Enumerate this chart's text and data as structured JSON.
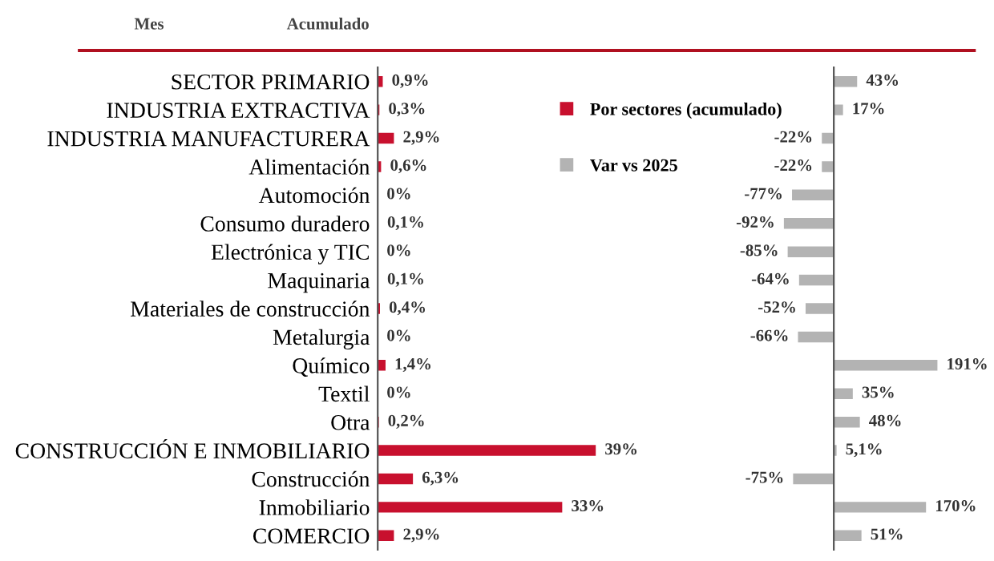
{
  "chart_data": [
    {
      "type": "bar",
      "orientation": "horizontal",
      "annotations": [
        "Mes",
        "Acumulado"
      ],
      "legend": "top right",
      "data_labels": true,
      "categories": [
        "SECTOR PRIMARIO",
        "INDUSTRIA EXTRACTIVA",
        "INDUSTRIA MANUFACTURERA",
        "Alimentación",
        "Automoción",
        "Consumo duradero",
        "Electrónica y TIC",
        "Maquinaria",
        "Materiales de construcción",
        "Metalurgia",
        "Químico",
        "Textil",
        "Otra",
        "CONSTRUCCIÓN E INMOBILIARIO",
        "Construcción",
        "Inmobiliario",
        "COMERCIO"
      ],
      "series": [
        {
          "name": "Por sectores (acumulado)",
          "color": "#c8102e",
          "values": [
            0.9,
            0.3,
            2.9,
            0.6,
            0,
            0.1,
            0,
            0.1,
            0.4,
            0,
            1.4,
            0,
            0.2,
            39,
            6.3,
            33,
            2.9
          ],
          "value_labels": [
            "0,9%",
            "0,3%",
            "2,9%",
            "0,6%",
            "0%",
            "0,1%",
            "0%",
            "0,1%",
            "0,4%",
            "0%",
            "1,4%",
            "0%",
            "0,2%",
            "39%",
            "6,3%",
            "33%",
            "2,9%"
          ]
        }
      ]
    },
    {
      "type": "bar",
      "orientation": "horizontal",
      "data_labels": true,
      "legend": "left",
      "categories": [
        null,
        null,
        null,
        null,
        null,
        null,
        null,
        null,
        null,
        null,
        null,
        null,
        null,
        null,
        null,
        null,
        null
      ],
      "series": [
        {
          "name": "Var vs 2025",
          "color": "#b3b3b3",
          "values": [
            43,
            17,
            -22,
            -22,
            -77,
            -92,
            -85,
            -64,
            -52,
            -66,
            191,
            35,
            48,
            5.1,
            -75,
            170,
            51
          ],
          "value_labels": [
            "43%",
            "17%",
            "-22%",
            "-22%",
            "-77%",
            "-92%",
            "-85%",
            "-64%",
            "-52%",
            "-66%",
            "191%",
            "35%",
            "48%",
            "5,1%",
            "-75%",
            "170%",
            "51%"
          ]
        }
      ]
    }
  ]
}
